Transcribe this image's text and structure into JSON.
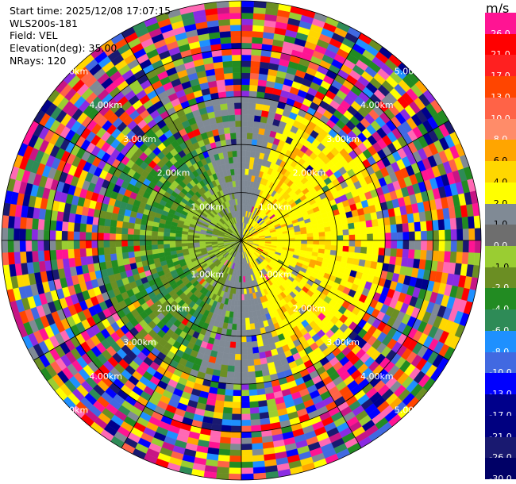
{
  "header": {
    "start_time": "Start time: 2025/12/08 17:07:15",
    "instrument": "WLS200s-181",
    "field": "Field: VEL",
    "elevation": "Elevation(deg): 35.00",
    "nrays": "NRays: 120"
  },
  "colorbar": {
    "unit": "m/s",
    "levels": [
      {
        "label": "26.0",
        "color": "#ff1493"
      },
      {
        "label": "21.0",
        "color": "#ff0000"
      },
      {
        "label": "17.0",
        "color": "#ff2020"
      },
      {
        "label": "13.0",
        "color": "#ff4500"
      },
      {
        "label": "10.0",
        "color": "#ff6347"
      },
      {
        "label": "8.0",
        "color": "#ff8c69"
      },
      {
        "label": "6.0",
        "color": "#ffa500"
      },
      {
        "label": "4.0",
        "color": "#ffd700"
      },
      {
        "label": "2.0",
        "color": "#ffff00"
      },
      {
        "label": "1.0",
        "color": "#808a95"
      },
      {
        "label": "0.0",
        "color": "#6e6e6e"
      },
      {
        "label": "-1.0",
        "color": "#9acd32"
      },
      {
        "label": "-2.0",
        "color": "#6b8e23"
      },
      {
        "label": "-4.0",
        "color": "#228b22"
      },
      {
        "label": "-6.0",
        "color": "#2e8b57"
      },
      {
        "label": "-8.0",
        "color": "#1e90ff"
      },
      {
        "label": "-10.0",
        "color": "#4169e1"
      },
      {
        "label": "-13.0",
        "color": "#0000ff"
      },
      {
        "label": "-17.0",
        "color": "#00008b"
      },
      {
        "label": "-21.0",
        "color": "#000080"
      },
      {
        "label": "-26.0",
        "color": "#191970"
      },
      {
        "label": "-30.0",
        "color": "#000066"
      }
    ]
  },
  "chart_data": {
    "type": "heatmap",
    "projection": "polar PPI",
    "field": "VEL",
    "units": "m/s",
    "nrays": 120,
    "elevation_deg": 35.0,
    "max_range_km": 5.0,
    "range_rings_km": [
      1.0,
      2.0,
      3.0,
      4.0,
      5.0
    ],
    "range_ring_labels": [
      "1.00km",
      "2.00km",
      "3.00km",
      "4.00km",
      "5.00km"
    ],
    "pattern_summary": "Near field (< ~3 km): negative velocities (greens) to the west, positive velocities (yellows) to the east, grey near zero along north-south; beyond ~3 km: noisy multicolour returns across all bins",
    "vmin": -30.0,
    "vmax": 30.0
  }
}
